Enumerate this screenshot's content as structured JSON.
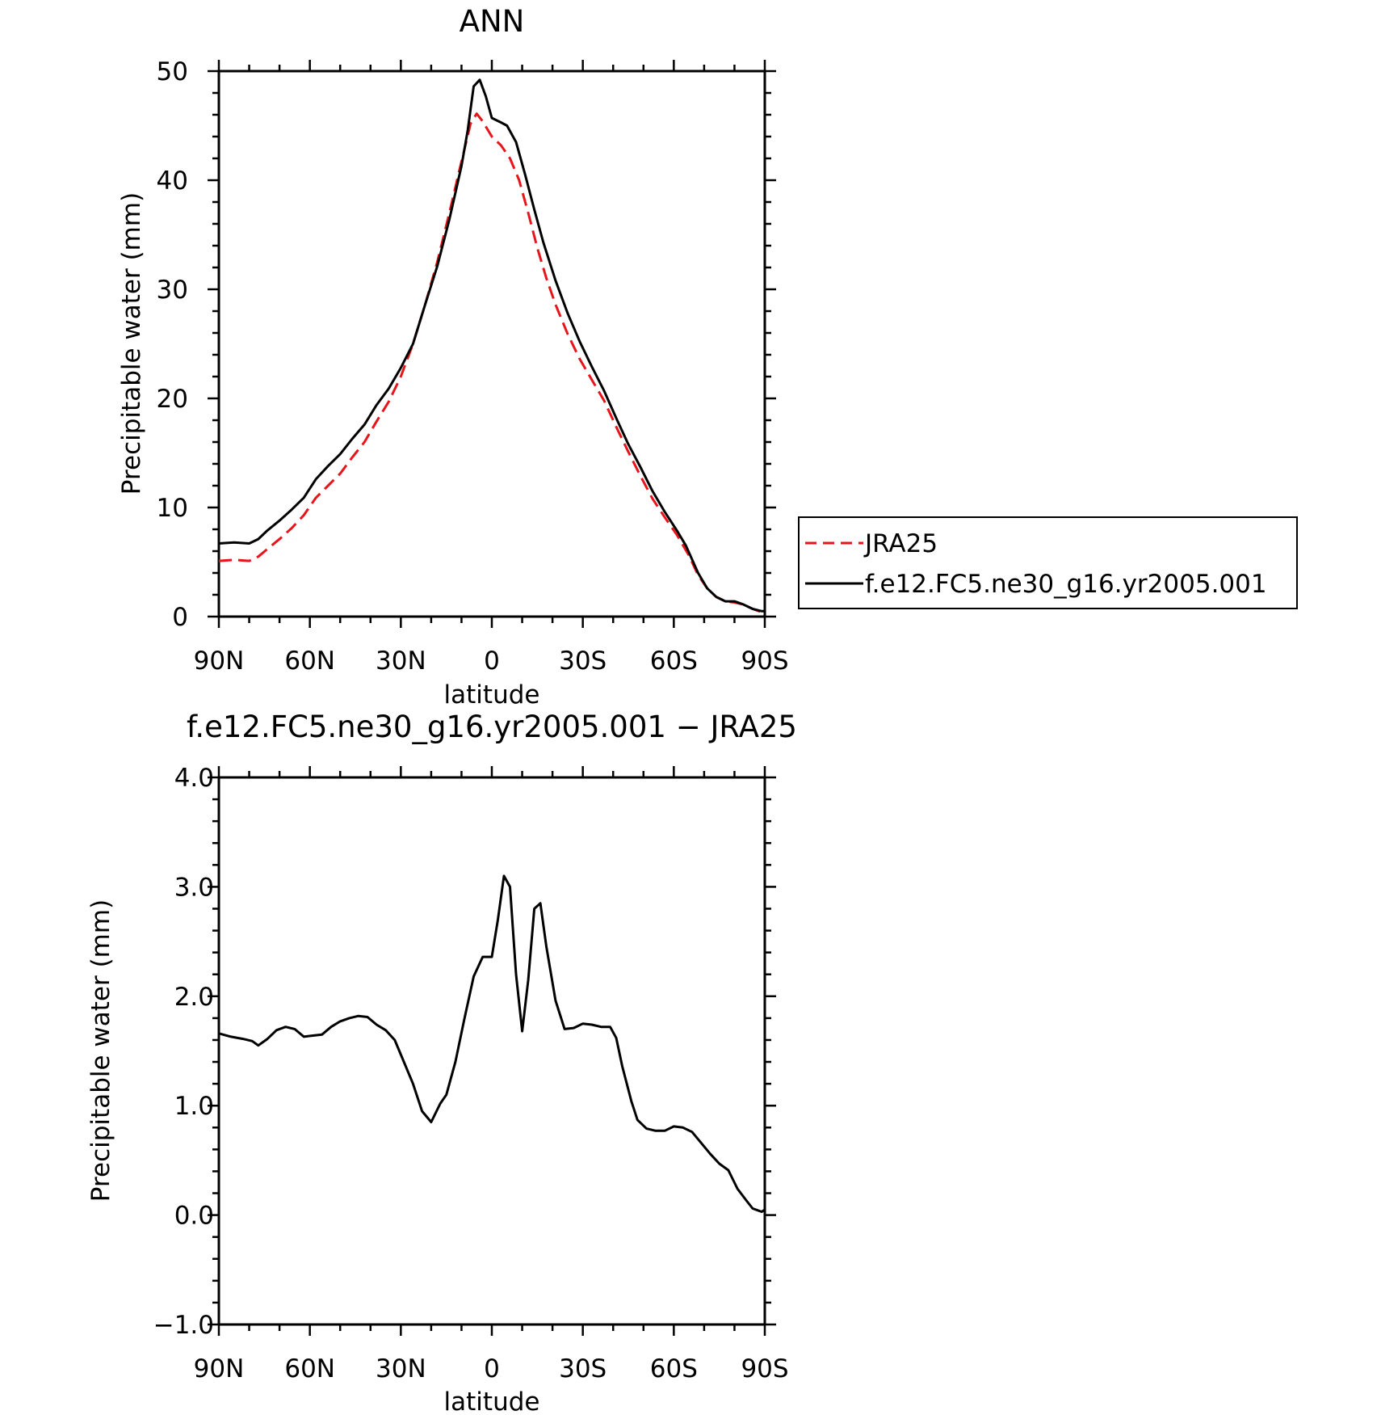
{
  "figure": {
    "x_tick_labels": [
      "90N",
      "60N",
      "30N",
      "0",
      "30S",
      "60S",
      "90S"
    ]
  },
  "chart_data": [
    {
      "type": "line",
      "title": "ANN",
      "xlabel": "latitude",
      "ylabel": "Precipitable water (mm)",
      "xlim": [
        90,
        -90
      ],
      "ylim": [
        0,
        50
      ],
      "yticks": [
        "0",
        "10",
        "20",
        "30",
        "40",
        "50"
      ],
      "legend_position": "right, outside plot",
      "series": [
        {
          "name": "JRA25",
          "color": "#e8141b",
          "dash": "dashed",
          "points": [
            [
              90,
              5.1
            ],
            [
              85,
              5.2
            ],
            [
              80,
              5.1
            ],
            [
              77,
              5.5
            ],
            [
              74,
              6.2
            ],
            [
              70,
              7.1
            ],
            [
              66,
              8.1
            ],
            [
              62,
              9.3
            ],
            [
              58,
              10.9
            ],
            [
              54,
              12.0
            ],
            [
              50,
              13.1
            ],
            [
              46,
              14.6
            ],
            [
              42,
              16.0
            ],
            [
              38,
              17.9
            ],
            [
              34,
              19.7
            ],
            [
              30,
              22.0
            ],
            [
              26,
              25.0
            ],
            [
              22,
              28.6
            ],
            [
              18,
              32.5
            ],
            [
              14,
              37.0
            ],
            [
              10,
              41.7
            ],
            [
              7,
              45.2
            ],
            [
              5,
              46.1
            ],
            [
              3,
              45.4
            ],
            [
              0,
              44.0
            ],
            [
              -3,
              43.2
            ],
            [
              -6,
              42.0
            ],
            [
              -9,
              40.0
            ],
            [
              -12,
              37.0
            ],
            [
              -15,
              33.8
            ],
            [
              -18,
              31.0
            ],
            [
              -21,
              28.6
            ],
            [
              -25,
              25.9
            ],
            [
              -29,
              23.6
            ],
            [
              -33,
              21.7
            ],
            [
              -37,
              19.8
            ],
            [
              -41,
              17.4
            ],
            [
              -45,
              15.1
            ],
            [
              -49,
              12.9
            ],
            [
              -53,
              10.8
            ],
            [
              -57,
              9.1
            ],
            [
              -61,
              7.5
            ],
            [
              -65,
              5.6
            ],
            [
              -68,
              3.8
            ],
            [
              -71,
              2.6
            ],
            [
              -74,
              1.8
            ],
            [
              -77,
              1.4
            ],
            [
              -80,
              1.3
            ],
            [
              -83,
              1.1
            ],
            [
              -86,
              0.7
            ],
            [
              -89,
              0.4
            ],
            [
              -90,
              0.4
            ]
          ]
        },
        {
          "name": "f.e12.FC5.ne30_g16.yr2005.001",
          "color": "#000000",
          "dash": "solid",
          "points": [
            [
              90,
              6.7
            ],
            [
              85,
              6.8
            ],
            [
              80,
              6.7
            ],
            [
              77,
              7.1
            ],
            [
              74,
              7.9
            ],
            [
              70,
              8.8
            ],
            [
              66,
              9.8
            ],
            [
              62,
              10.9
            ],
            [
              58,
              12.6
            ],
            [
              54,
              13.8
            ],
            [
              50,
              14.9
            ],
            [
              46,
              16.3
            ],
            [
              42,
              17.6
            ],
            [
              38,
              19.4
            ],
            [
              34,
              20.9
            ],
            [
              30,
              22.8
            ],
            [
              26,
              25.0
            ],
            [
              22,
              28.6
            ],
            [
              18,
              32.1
            ],
            [
              14,
              36.4
            ],
            [
              10,
              41.3
            ],
            [
              8,
              44.5
            ],
            [
              6,
              48.6
            ],
            [
              4,
              49.2
            ],
            [
              2,
              47.7
            ],
            [
              0,
              45.7
            ],
            [
              -3,
              45.3
            ],
            [
              -5,
              45.0
            ],
            [
              -8,
              43.5
            ],
            [
              -11,
              40.5
            ],
            [
              -14,
              37.3
            ],
            [
              -17,
              34.3
            ],
            [
              -21,
              30.8
            ],
            [
              -25,
              27.8
            ],
            [
              -29,
              25.2
            ],
            [
              -33,
              22.9
            ],
            [
              -37,
              20.7
            ],
            [
              -41,
              18.2
            ],
            [
              -45,
              15.8
            ],
            [
              -49,
              13.7
            ],
            [
              -53,
              11.5
            ],
            [
              -57,
              9.6
            ],
            [
              -61,
              7.9
            ],
            [
              -64,
              6.5
            ],
            [
              -68,
              4.0
            ],
            [
              -71,
              2.6
            ],
            [
              -74,
              1.8
            ],
            [
              -77,
              1.4
            ],
            [
              -80,
              1.4
            ],
            [
              -83,
              1.1
            ],
            [
              -86,
              0.7
            ],
            [
              -89,
              0.5
            ],
            [
              -90,
              0.5
            ]
          ]
        }
      ]
    },
    {
      "type": "line",
      "title": "f.e12.FC5.ne30_g16.yr2005.001 − JRA25",
      "xlabel": "latitude",
      "ylabel": "Precipitable water (mm)",
      "xlim": [
        90,
        -90
      ],
      "ylim": [
        -1.0,
        4.0
      ],
      "yticks": [
        "−1.0",
        "0.0",
        "1.0",
        "2.0",
        "3.0",
        "4.0"
      ],
      "series": [
        {
          "color": "#000000",
          "dash": "solid",
          "points": [
            [
              90,
              1.66
            ],
            [
              86,
              1.63
            ],
            [
              82,
              1.61
            ],
            [
              79,
              1.59
            ],
            [
              77,
              1.55
            ],
            [
              74,
              1.61
            ],
            [
              71,
              1.69
            ],
            [
              68,
              1.72
            ],
            [
              65,
              1.7
            ],
            [
              62,
              1.63
            ],
            [
              59,
              1.64
            ],
            [
              56,
              1.65
            ],
            [
              53,
              1.72
            ],
            [
              50,
              1.77
            ],
            [
              47,
              1.8
            ],
            [
              44,
              1.82
            ],
            [
              41,
              1.81
            ],
            [
              38,
              1.74
            ],
            [
              35,
              1.69
            ],
            [
              32,
              1.6
            ],
            [
              29,
              1.4
            ],
            [
              26,
              1.2
            ],
            [
              23,
              0.95
            ],
            [
              20,
              0.85
            ],
            [
              17,
              1.02
            ],
            [
              15,
              1.1
            ],
            [
              12,
              1.4
            ],
            [
              9,
              1.8
            ],
            [
              6,
              2.18
            ],
            [
              3,
              2.36
            ],
            [
              0,
              2.36
            ],
            [
              -2,
              2.7
            ],
            [
              -4,
              3.1
            ],
            [
              -6,
              3.0
            ],
            [
              -8,
              2.2
            ],
            [
              -10,
              1.68
            ],
            [
              -12,
              2.15
            ],
            [
              -14,
              2.8
            ],
            [
              -16,
              2.85
            ],
            [
              -18,
              2.45
            ],
            [
              -21,
              1.96
            ],
            [
              -24,
              1.7
            ],
            [
              -27,
              1.71
            ],
            [
              -30,
              1.75
            ],
            [
              -33,
              1.74
            ],
            [
              -36,
              1.72
            ],
            [
              -39,
              1.72
            ],
            [
              -41,
              1.62
            ],
            [
              -43,
              1.36
            ],
            [
              -46,
              1.04
            ],
            [
              -48,
              0.87
            ],
            [
              -51,
              0.79
            ],
            [
              -54,
              0.77
            ],
            [
              -57,
              0.77
            ],
            [
              -60,
              0.81
            ],
            [
              -63,
              0.8
            ],
            [
              -66,
              0.76
            ],
            [
              -69,
              0.66
            ],
            [
              -72,
              0.56
            ],
            [
              -75,
              0.47
            ],
            [
              -78,
              0.41
            ],
            [
              -81,
              0.24
            ],
            [
              -84,
              0.13
            ],
            [
              -86,
              0.06
            ],
            [
              -88,
              0.04
            ],
            [
              -89,
              0.03
            ],
            [
              -90,
              0.05
            ]
          ]
        }
      ]
    }
  ]
}
